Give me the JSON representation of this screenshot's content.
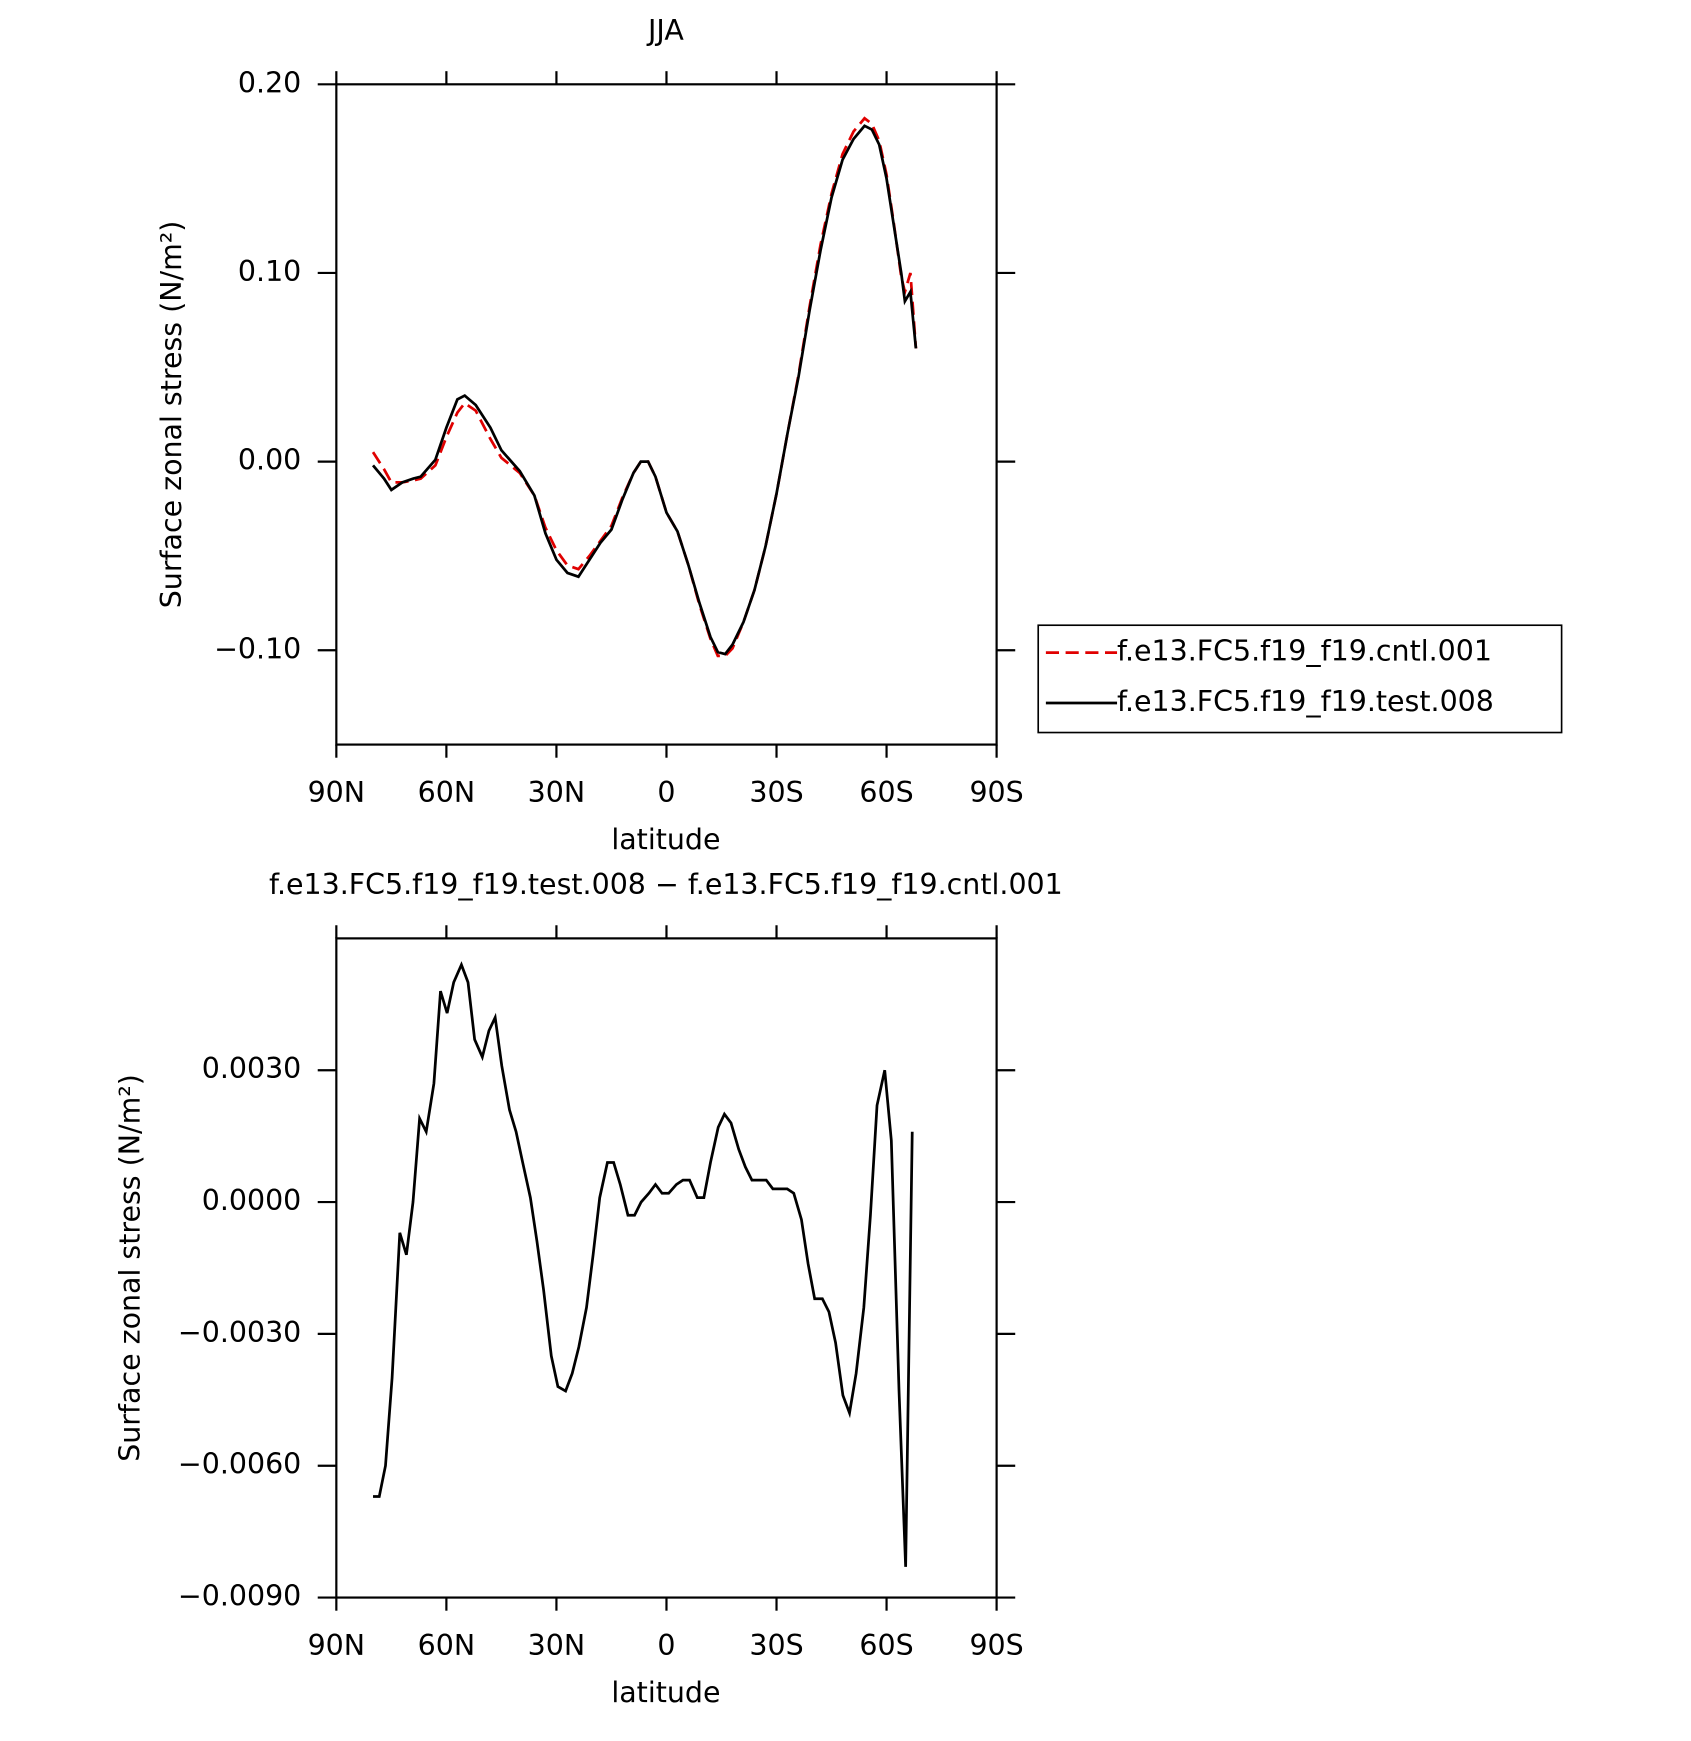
{
  "chart_data": [
    {
      "type": "line",
      "title": "JJA",
      "x_label": "latitude",
      "y_label": "Surface zonal stress (N/m²)",
      "x": [
        80,
        77,
        75,
        72,
        69,
        67,
        63,
        60,
        57,
        55,
        52,
        48,
        45,
        40,
        36,
        33,
        30,
        27,
        24,
        21,
        18,
        15,
        12,
        9,
        7,
        5,
        3,
        0,
        -3,
        -6,
        -9,
        -12,
        -14,
        -16,
        -18,
        -21,
        -24,
        -27,
        -30,
        -33,
        -36,
        -39,
        -42,
        -45,
        -48,
        -51,
        -54,
        -56,
        -58,
        -60,
        -62,
        -64,
        -65,
        -66.5,
        -68
      ],
      "series": [
        {
          "name": "f.e13.FC5.f19_f19.cntl.001",
          "color": "#e00000",
          "dash": true,
          "values": [
            0.005,
            -0.004,
            -0.011,
            -0.011,
            -0.01,
            -0.009,
            -0.002,
            0.013,
            0.026,
            0.031,
            0.027,
            0.012,
            0.002,
            -0.006,
            -0.018,
            -0.035,
            -0.047,
            -0.055,
            -0.057,
            -0.05,
            -0.042,
            -0.034,
            -0.019,
            -0.006,
            0.0,
            0.0,
            -0.008,
            -0.027,
            -0.037,
            -0.055,
            -0.076,
            -0.094,
            -0.103,
            -0.103,
            -0.099,
            -0.085,
            -0.068,
            -0.045,
            -0.017,
            0.015,
            0.046,
            0.082,
            0.115,
            0.142,
            0.163,
            0.175,
            0.182,
            0.179,
            0.17,
            0.152,
            0.126,
            0.098,
            0.09,
            0.1,
            0.06
          ]
        },
        {
          "name": "f.e13.FC5.f19_f19.test.008",
          "color": "#000000",
          "dash": false,
          "values": [
            -0.002,
            -0.009,
            -0.015,
            -0.011,
            -0.009,
            -0.008,
            0.001,
            0.018,
            0.033,
            0.035,
            0.03,
            0.018,
            0.006,
            -0.005,
            -0.018,
            -0.038,
            -0.052,
            -0.059,
            -0.061,
            -0.052,
            -0.043,
            -0.036,
            -0.02,
            -0.006,
            0.0,
            0.0,
            -0.008,
            -0.027,
            -0.037,
            -0.055,
            -0.075,
            -0.093,
            -0.101,
            -0.102,
            -0.097,
            -0.085,
            -0.068,
            -0.045,
            -0.017,
            0.015,
            0.045,
            0.08,
            0.112,
            0.14,
            0.16,
            0.171,
            0.178,
            0.176,
            0.168,
            0.15,
            0.125,
            0.1,
            0.085,
            0.09,
            0.06
          ]
        }
      ],
      "xlim": [
        90,
        -90
      ],
      "xticks": [
        {
          "value": 90,
          "label": "90N"
        },
        {
          "value": 60,
          "label": "60N"
        },
        {
          "value": 30,
          "label": "30N"
        },
        0,
        {
          "value": -30,
          "label": "30S"
        },
        {
          "value": -60,
          "label": "60S"
        },
        {
          "value": -90,
          "label": "90S"
        }
      ],
      "ylim": [
        -0.15,
        0.2
      ],
      "yticks": [
        {
          "value": -0.1,
          "label": "−0.10"
        },
        {
          "value": 0,
          "label": "0.00"
        },
        {
          "value": 0.1,
          "label": "0.10"
        },
        {
          "value": 0.2,
          "label": "0.20"
        }
      ],
      "legend": "right"
    },
    {
      "type": "line",
      "title": "f.e13.FC5.f19_f19.test.008 − f.e13.FC5.f19_f19.cntl.001",
      "x_label": "latitude",
      "y_label": "Surface zonal stress (N/m²)",
      "x": [
        80,
        78.3,
        76.6,
        74.8,
        72.7,
        70.9,
        69.1,
        67.3,
        65.5,
        63.4,
        61.6,
        59.8,
        58,
        55.9,
        54.1,
        52.3,
        50.2,
        48.4,
        46.7,
        44.9,
        42.8,
        41,
        39.2,
        37.1,
        35.3,
        33.5,
        31.4,
        29.6,
        27.5,
        25.7,
        23.9,
        21.8,
        20,
        18.2,
        16.1,
        14.4,
        12.6,
        10.5,
        8.7,
        6.9,
        4.8,
        3,
        1.2,
        -0.6,
        -2.7,
        -4.5,
        -6.3,
        -8.4,
        -10.2,
        -12,
        -14.1,
        -15.8,
        -17.6,
        -19.7,
        -21.5,
        -23.3,
        -25.4,
        -27.2,
        -29,
        -31.1,
        -32.9,
        -34.7,
        -36.8,
        -38.6,
        -40.4,
        -42.5,
        -44.3,
        -46.1,
        -48.1,
        -49.9,
        -51.7,
        -53.8,
        -55.6,
        -57.4,
        -59.5,
        -61.3,
        -63.4,
        -65.2,
        -67
      ],
      "series": [
        {
          "name": "f.e13.FC5.f19_f19.test.008 − f.e13.FC5.f19_f19.cntl.001",
          "color": "#000000",
          "dash": false,
          "values": [
            -0.0067,
            -0.0067,
            -0.006,
            -0.004,
            -0.0007,
            -0.0012,
            0.0,
            0.0019,
            0.0016,
            0.0027,
            0.0048,
            0.0043,
            0.005,
            0.0054,
            0.005,
            0.0037,
            0.0033,
            0.0039,
            0.0042,
            0.0031,
            0.0021,
            0.0016,
            0.0009,
            0.0001,
            -0.0009,
            -0.002,
            -0.0035,
            -0.0042,
            -0.0043,
            -0.0039,
            -0.0033,
            -0.0024,
            -0.0012,
            0.0001,
            0.0009,
            0.0009,
            0.0004,
            -0.0003,
            -0.0003,
            0.0,
            0.0002,
            0.0004,
            0.0002,
            0.0002,
            0.0004,
            0.0005,
            0.0005,
            0.0001,
            0.0001,
            0.0009,
            0.0017,
            0.002,
            0.0018,
            0.0012,
            0.0008,
            0.0005,
            0.0005,
            0.0005,
            0.0003,
            0.0003,
            0.0003,
            0.0002,
            -0.0004,
            -0.0014,
            -0.0022,
            -0.0022,
            -0.0025,
            -0.0032,
            -0.0044,
            -0.0048,
            -0.0039,
            -0.0024,
            -0.0003,
            0.0022,
            0.003,
            0.0014,
            -0.0043,
            -0.0083,
            0.0016
          ]
        }
      ],
      "xlim": [
        90,
        -90
      ],
      "xticks": [
        {
          "value": 90,
          "label": "90N"
        },
        {
          "value": 60,
          "label": "60N"
        },
        {
          "value": 30,
          "label": "30N"
        },
        0,
        {
          "value": -30,
          "label": "30S"
        },
        {
          "value": -60,
          "label": "60S"
        },
        {
          "value": -90,
          "label": "90S"
        }
      ],
      "ylim": [
        -0.009,
        0.006
      ],
      "yticks": [
        {
          "value": -0.009,
          "label": "−0.0090"
        },
        {
          "value": -0.006,
          "label": "−0.0060"
        },
        {
          "value": -0.003,
          "label": "−0.0030"
        },
        {
          "value": 0,
          "label": "0.0000"
        },
        {
          "value": 0.003,
          "label": "0.0030"
        }
      ]
    }
  ]
}
